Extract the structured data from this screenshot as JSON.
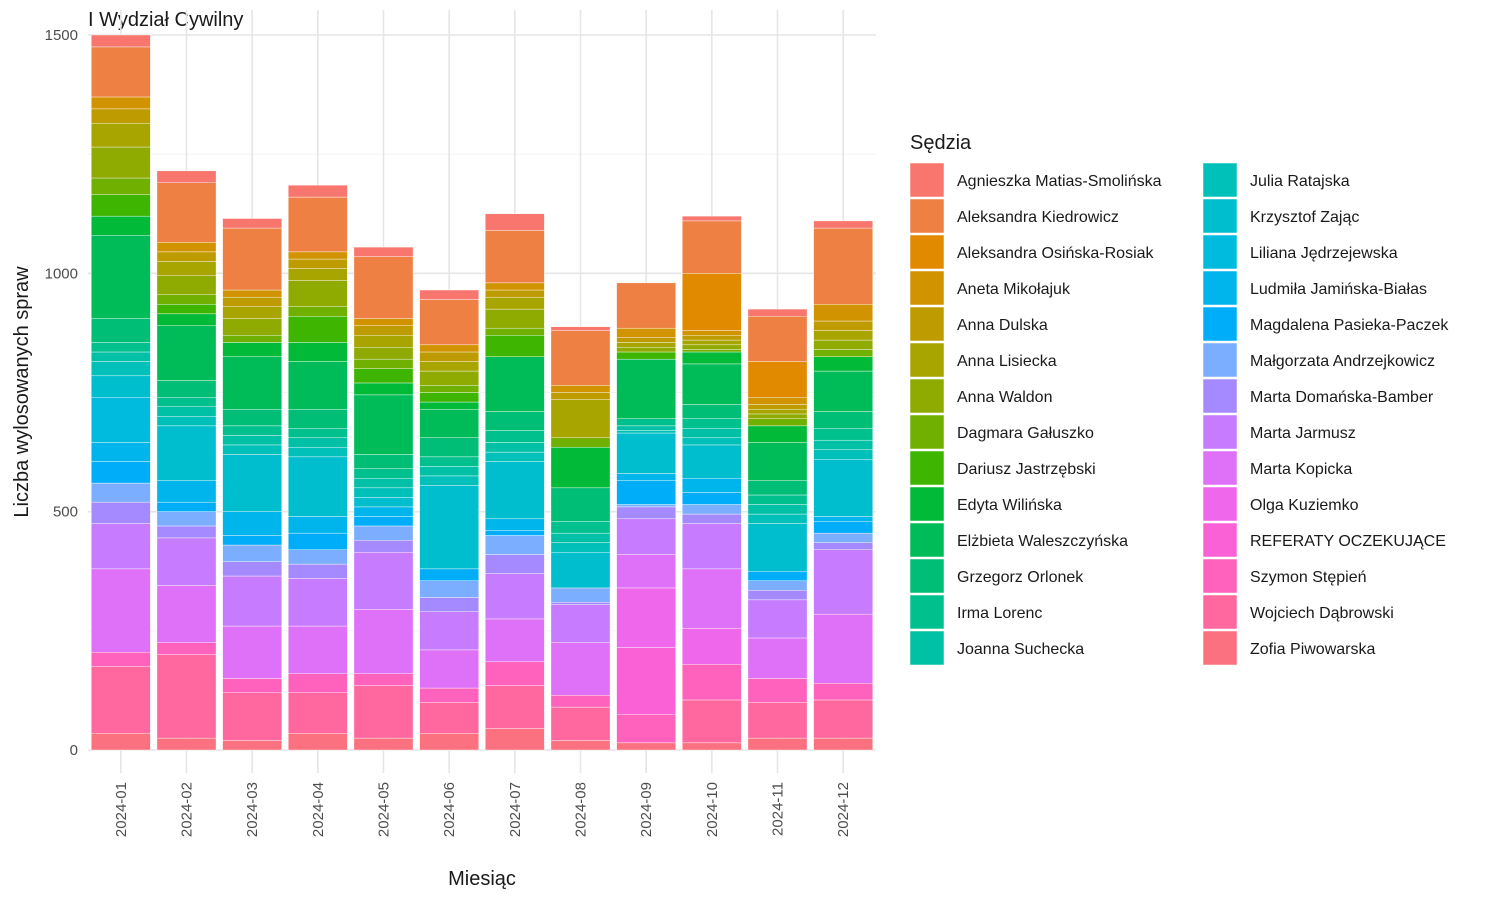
{
  "chart_data": {
    "type": "bar",
    "stacked": true,
    "title": "I Wydział Cywilny",
    "xlabel": "Miesiąc",
    "ylabel": "Liczba wylosowanych spraw",
    "ylim": [
      0,
      1500
    ],
    "yticks": [
      0,
      500,
      1000,
      1500
    ],
    "grid": true,
    "legend_title": "Sędzia",
    "legend_position": "right",
    "categories": [
      "2024-01",
      "2024-02",
      "2024-03",
      "2024-04",
      "2024-05",
      "2024-06",
      "2024-07",
      "2024-08",
      "2024-09",
      "2024-10",
      "2024-11",
      "2024-12"
    ],
    "series": [
      {
        "name": "Agnieszka Matias-Smolińska",
        "color": "#F8766D",
        "values": [
          25,
          25,
          20,
          25,
          20,
          20,
          35,
          8,
          0,
          10,
          15,
          15
        ]
      },
      {
        "name": "Aleksandra Kiedrowicz",
        "color": "#EE8043",
        "values": [
          105,
          125,
          130,
          115,
          130,
          95,
          110,
          115,
          95,
          110,
          95,
          160
        ]
      },
      {
        "name": "Aleksandra Osińska-Rosiak",
        "color": "#E18A00",
        "values": [
          0,
          0,
          0,
          0,
          0,
          0,
          0,
          0,
          0,
          120,
          75,
          0
        ]
      },
      {
        "name": "Aneta Mikołajuk",
        "color": "#D19300",
        "values": [
          25,
          20,
          15,
          15,
          15,
          15,
          15,
          15,
          20,
          10,
          15,
          35
        ]
      },
      {
        "name": "Anna Dulska",
        "color": "#BE9C00",
        "values": [
          30,
          20,
          20,
          20,
          20,
          20,
          15,
          15,
          10,
          10,
          10,
          20
        ]
      },
      {
        "name": "Anna Lisiecka",
        "color": "#A8A400",
        "values": [
          50,
          30,
          25,
          25,
          25,
          20,
          25,
          80,
          10,
          10,
          10,
          20
        ]
      },
      {
        "name": "Anna Waldon",
        "color": "#8FAA00",
        "values": [
          65,
          40,
          35,
          55,
          25,
          30,
          40,
          0,
          10,
          10,
          10,
          20
        ]
      },
      {
        "name": "Dagmara Gałuszko",
        "color": "#6FB000",
        "values": [
          35,
          20,
          15,
          20,
          20,
          15,
          15,
          20,
          0,
          5,
          15,
          15
        ]
      },
      {
        "name": "Dariusz Jastrzębski",
        "color": "#3EB500",
        "values": [
          45,
          20,
          0,
          55,
          30,
          20,
          45,
          0,
          15,
          0,
          0,
          0
        ]
      },
      {
        "name": "Edyta Wilińska",
        "color": "#00BA38",
        "values": [
          40,
          25,
          30,
          40,
          25,
          15,
          0,
          85,
          0,
          25,
          35,
          30
        ]
      },
      {
        "name": "Elżbieta Waleszczyńska",
        "color": "#00BC58",
        "values": [
          175,
          115,
          110,
          100,
          125,
          60,
          115,
          0,
          125,
          85,
          80,
          85
        ]
      },
      {
        "name": "Grzegorz Orlonek",
        "color": "#00BE76",
        "values": [
          50,
          35,
          35,
          40,
          30,
          40,
          40,
          70,
          0,
          30,
          30,
          35
        ]
      },
      {
        "name": "Irma Lorenc",
        "color": "#00C08E",
        "values": [
          20,
          20,
          20,
          20,
          20,
          20,
          25,
          25,
          15,
          20,
          20,
          25
        ]
      },
      {
        "name": "Joanna Suchecka",
        "color": "#00C1A5",
        "values": [
          20,
          20,
          20,
          20,
          20,
          20,
          20,
          20,
          10,
          20,
          20,
          20
        ]
      },
      {
        "name": "Julia Ratajska",
        "color": "#00C0BA",
        "values": [
          30,
          20,
          20,
          20,
          20,
          20,
          20,
          20,
          5,
          15,
          20,
          20
        ]
      },
      {
        "name": "Krzysztof Zając",
        "color": "#00BECD",
        "values": [
          45,
          115,
          120,
          125,
          20,
          175,
          120,
          75,
          85,
          70,
          100,
          120
        ]
      },
      {
        "name": "Liliana Jędrzejewska",
        "color": "#00BBDD",
        "values": [
          95,
          0,
          0,
          0,
          0,
          0,
          0,
          0,
          0,
          0,
          0,
          0
        ]
      },
      {
        "name": "Ludmiła Jamińska-Białas",
        "color": "#00B5EC",
        "values": [
          40,
          45,
          50,
          35,
          20,
          0,
          25,
          0,
          15,
          30,
          0,
          10
        ]
      },
      {
        "name": "Magdalena Pasieka-Paczek",
        "color": "#00ADF9",
        "values": [
          45,
          20,
          20,
          35,
          20,
          25,
          10,
          0,
          50,
          25,
          20,
          25
        ]
      },
      {
        "name": "Małgorzata Andrzejkowicz",
        "color": "#7CAEFF",
        "values": [
          40,
          30,
          35,
          30,
          30,
          35,
          40,
          30,
          5,
          20,
          20,
          20
        ]
      },
      {
        "name": "Marta Domańska-Bamber",
        "color": "#A58AFF",
        "values": [
          45,
          25,
          30,
          30,
          25,
          30,
          40,
          5,
          25,
          20,
          20,
          15
        ]
      },
      {
        "name": "Marta Jarmusz",
        "color": "#C77CFF",
        "values": [
          95,
          100,
          105,
          100,
          120,
          80,
          95,
          80,
          75,
          95,
          80,
          135
        ]
      },
      {
        "name": "Marta Kopicka",
        "color": "#DF70F8",
        "values": [
          175,
          120,
          110,
          100,
          135,
          80,
          90,
          110,
          70,
          125,
          85,
          145
        ]
      },
      {
        "name": "Olga Kuziemko",
        "color": "#EF67EB",
        "values": [
          0,
          0,
          0,
          0,
          0,
          0,
          0,
          0,
          125,
          75,
          0,
          0
        ]
      },
      {
        "name": "REFERATY OCZEKUJĄCE",
        "color": "#FB61D7",
        "values": [
          0,
          0,
          0,
          0,
          0,
          0,
          0,
          0,
          140,
          0,
          0,
          0
        ]
      },
      {
        "name": "Szymon Stępień",
        "color": "#FF62BC",
        "values": [
          30,
          25,
          30,
          40,
          25,
          30,
          50,
          25,
          60,
          75,
          50,
          35
        ]
      },
      {
        "name": "Wojciech Dąbrowski",
        "color": "#FF689F",
        "values": [
          140,
          175,
          100,
          85,
          110,
          65,
          90,
          70,
          0,
          90,
          75,
          80
        ]
      },
      {
        "name": "Zofia Piwowarska",
        "color": "#FC717F",
        "values": [
          35,
          25,
          20,
          35,
          25,
          35,
          45,
          20,
          15,
          15,
          25,
          25
        ]
      }
    ]
  }
}
